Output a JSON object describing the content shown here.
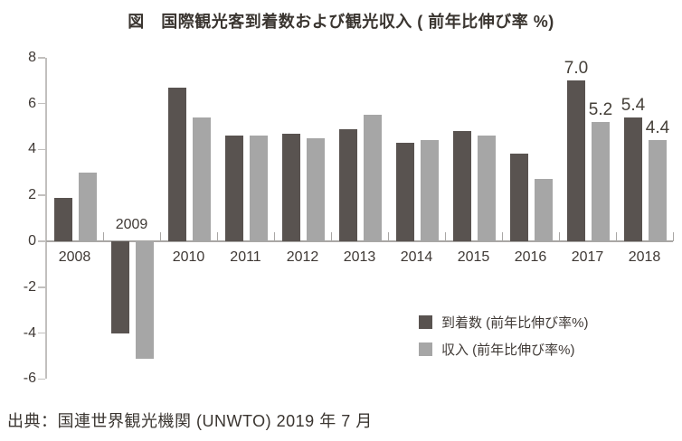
{
  "title": "図　国際観光客到着数および観光収入 ( 前年比伸び率 %)",
  "source": "出典：国連世界観光機関 (UNWTO) 2019 年 7 月",
  "legend": {
    "arrivals_label": "到着数 (前年比伸び率%)",
    "receipts_label": "収入 (前年比伸び率%)"
  },
  "colors": {
    "arrivals": "#595350",
    "receipts": "#a6a6a6",
    "axis": "#c2c0be",
    "baseline": "#a9a7a5",
    "text": "#3f3935"
  },
  "chart_data": {
    "type": "bar",
    "title": "図　国際観光客到着数および観光収入 ( 前年比伸び率 %)",
    "categories": [
      "2008",
      "2009",
      "2010",
      "2011",
      "2012",
      "2013",
      "2014",
      "2015",
      "2016",
      "2017",
      "2018"
    ],
    "series": [
      {
        "name": "到着数 (前年比伸び率%)",
        "key": "arrivals",
        "color": "#595350",
        "values": [
          1.9,
          -4.0,
          6.7,
          4.6,
          4.7,
          4.9,
          4.3,
          4.8,
          3.8,
          7.0,
          5.4
        ]
      },
      {
        "name": "収入 (前年比伸び率%)",
        "key": "receipts",
        "color": "#a6a6a6",
        "values": [
          3.0,
          -5.1,
          5.4,
          4.6,
          4.5,
          5.5,
          4.4,
          4.6,
          2.7,
          5.2,
          4.4
        ]
      }
    ],
    "ylim": [
      -6,
      8
    ],
    "yticks": [
      8,
      6,
      4,
      2,
      0,
      -2,
      -4,
      -6
    ],
    "grid": false,
    "legend_position": "inside-bottom-right",
    "bar_labels": [
      {
        "category": "2017",
        "series": 0,
        "label": "7.0"
      },
      {
        "category": "2017",
        "series": 1,
        "label": "5.2"
      },
      {
        "category": "2018",
        "series": 0,
        "label": "5.4"
      },
      {
        "category": "2018",
        "series": 1,
        "label": "4.4"
      }
    ]
  }
}
